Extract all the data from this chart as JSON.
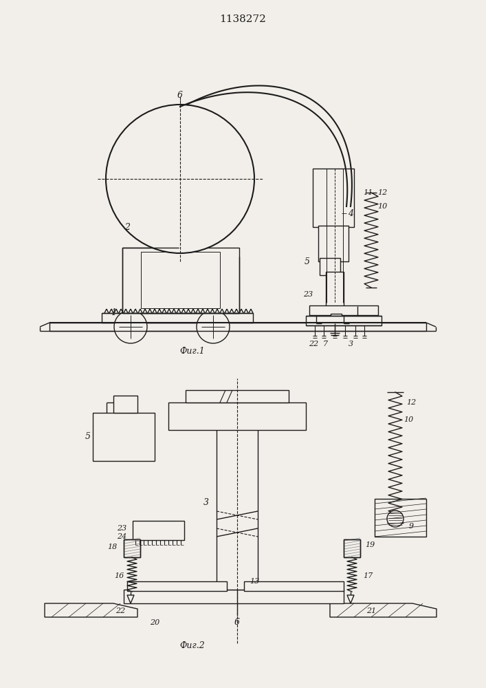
{
  "title": "1138272",
  "fig1_label": "Фиг.1",
  "fig2_label": "Фиг.2",
  "bg_color": "#f2efea",
  "line_color": "#1c1c1c",
  "lw": 1.0
}
